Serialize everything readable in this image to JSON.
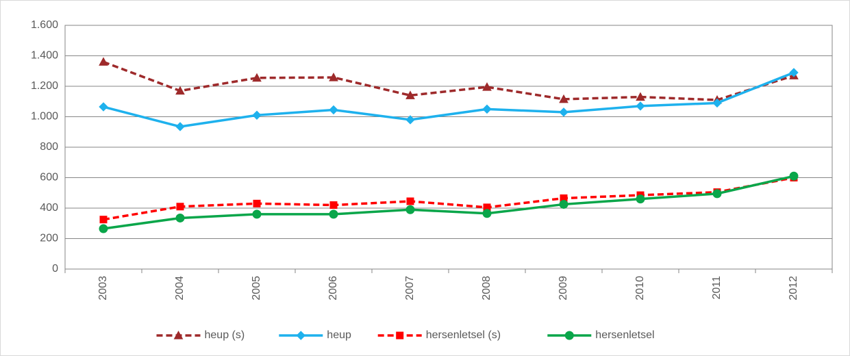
{
  "chart_data": {
    "type": "line",
    "categories": [
      "2003",
      "2004",
      "2005",
      "2006",
      "2007",
      "2008",
      "2009",
      "2010",
      "2011",
      "2012"
    ],
    "series": [
      {
        "name": "heup (s)",
        "color": "#9e2a2b",
        "dashed": true,
        "marker": "triangle",
        "values": [
          1360,
          1170,
          1255,
          1258,
          1140,
          1195,
          1115,
          1130,
          1110,
          1270
        ]
      },
      {
        "name": "heup",
        "color": "#1eb1ed",
        "dashed": false,
        "marker": "diamond",
        "values": [
          1065,
          935,
          1010,
          1045,
          980,
          1050,
          1030,
          1070,
          1090,
          1290
        ]
      },
      {
        "name": "hersenletsel (s)",
        "color": "#ff0000",
        "dashed": true,
        "marker": "square",
        "values": [
          325,
          410,
          430,
          420,
          445,
          405,
          465,
          485,
          505,
          600
        ]
      },
      {
        "name": "hersenletsel",
        "color": "#0aa64a",
        "dashed": false,
        "marker": "circle",
        "values": [
          265,
          335,
          360,
          360,
          390,
          365,
          425,
          460,
          495,
          610
        ]
      }
    ],
    "ylim": [
      0,
      1600
    ],
    "yticks": [
      0,
      200,
      400,
      600,
      800,
      {
        "value": 1000,
        "label": "1.000"
      },
      {
        "value": 1200,
        "label": "1.200"
      },
      {
        "value": 1400,
        "label": "1.400"
      },
      {
        "value": 1600,
        "label": "1.600"
      }
    ],
    "grid": true,
    "legend": "bottom"
  }
}
